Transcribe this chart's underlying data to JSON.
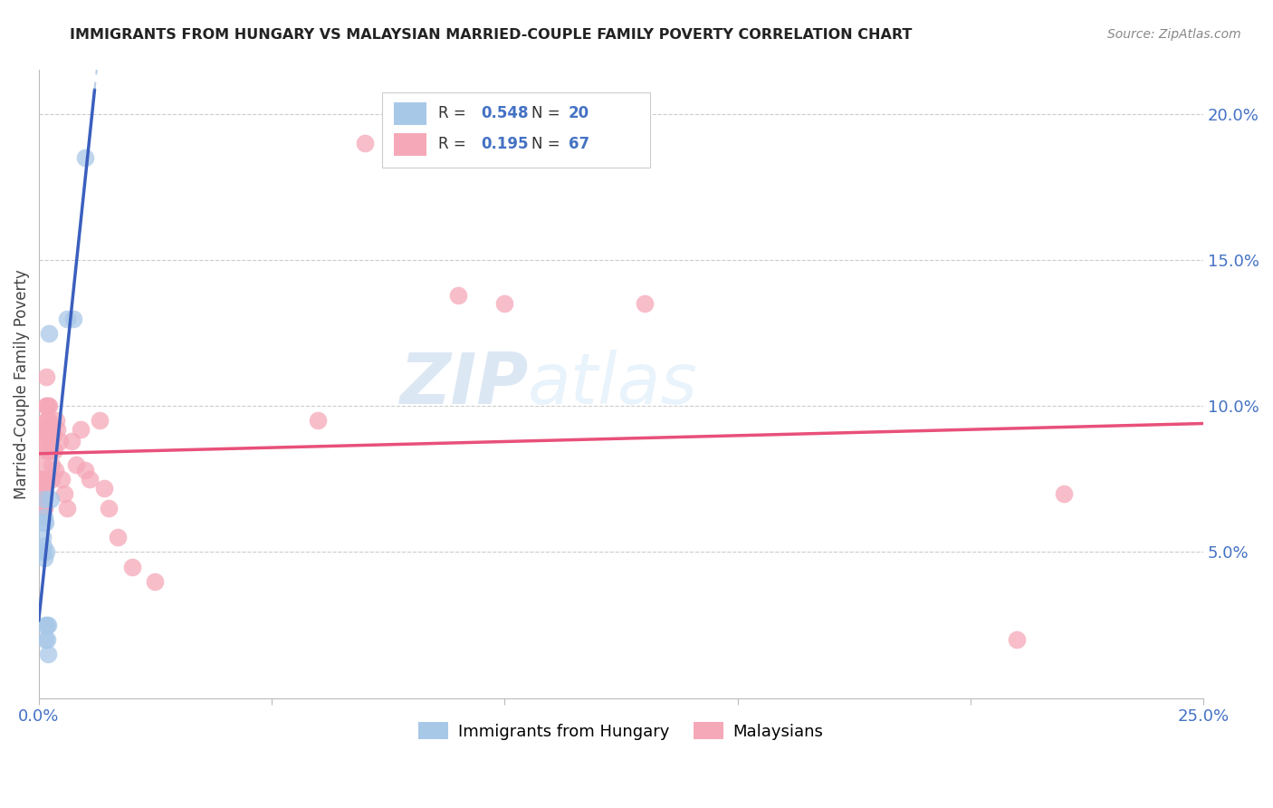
{
  "title": "IMMIGRANTS FROM HUNGARY VS MALAYSIAN MARRIED-COUPLE FAMILY POVERTY CORRELATION CHART",
  "source": "Source: ZipAtlas.com",
  "ylabel": "Married-Couple Family Poverty",
  "xlim": [
    0.0,
    0.25
  ],
  "ylim": [
    0.0,
    0.215
  ],
  "legend_r_hungary": "0.548",
  "legend_n_hungary": "20",
  "legend_r_malaysian": "0.195",
  "legend_n_malaysian": "67",
  "color_hungary": "#a8c8e8",
  "color_malaysian": "#f5a8b8",
  "color_hungary_line": "#3a5fbe",
  "color_malaysian_line": "#e8507a",
  "color_r_value": "#4472c4",
  "watermark_zip": "ZIP",
  "watermark_atlas": "atlas",
  "hungary_x": [
    0.0008,
    0.0008,
    0.001,
    0.001,
    0.0012,
    0.0012,
    0.0012,
    0.0014,
    0.0015,
    0.0015,
    0.0016,
    0.0018,
    0.0018,
    0.002,
    0.002,
    0.0022,
    0.0025,
    0.006,
    0.0075,
    0.01
  ],
  "hungary_y": [
    0.055,
    0.05,
    0.06,
    0.052,
    0.068,
    0.062,
    0.048,
    0.06,
    0.025,
    0.02,
    0.05,
    0.025,
    0.02,
    0.025,
    0.015,
    0.125,
    0.068,
    0.13,
    0.13,
    0.185
  ],
  "malaysian_x": [
    0.0005,
    0.0006,
    0.0007,
    0.0008,
    0.0008,
    0.0009,
    0.001,
    0.001,
    0.001,
    0.0011,
    0.0011,
    0.0012,
    0.0012,
    0.0013,
    0.0013,
    0.0014,
    0.0014,
    0.0015,
    0.0015,
    0.0016,
    0.0016,
    0.0017,
    0.0017,
    0.0018,
    0.0018,
    0.0019,
    0.0019,
    0.002,
    0.002,
    0.0021,
    0.0021,
    0.0022,
    0.0022,
    0.0023,
    0.0024,
    0.0025,
    0.0026,
    0.0027,
    0.0028,
    0.003,
    0.0032,
    0.0034,
    0.0036,
    0.0038,
    0.004,
    0.0045,
    0.005,
    0.0055,
    0.006,
    0.007,
    0.008,
    0.009,
    0.01,
    0.011,
    0.013,
    0.014,
    0.015,
    0.017,
    0.02,
    0.025,
    0.06,
    0.07,
    0.09,
    0.1,
    0.13,
    0.21,
    0.22
  ],
  "malaysian_y": [
    0.07,
    0.075,
    0.068,
    0.065,
    0.07,
    0.075,
    0.068,
    0.072,
    0.065,
    0.075,
    0.08,
    0.065,
    0.072,
    0.07,
    0.075,
    0.085,
    0.09,
    0.092,
    0.088,
    0.095,
    0.1,
    0.11,
    0.1,
    0.095,
    0.09,
    0.085,
    0.092,
    0.1,
    0.085,
    0.092,
    0.088,
    0.1,
    0.095,
    0.092,
    0.085,
    0.09,
    0.088,
    0.08,
    0.075,
    0.092,
    0.09,
    0.085,
    0.078,
    0.095,
    0.092,
    0.088,
    0.075,
    0.07,
    0.065,
    0.088,
    0.08,
    0.092,
    0.078,
    0.075,
    0.095,
    0.072,
    0.065,
    0.055,
    0.045,
    0.04,
    0.095,
    0.19,
    0.138,
    0.135,
    0.135,
    0.02,
    0.07
  ]
}
